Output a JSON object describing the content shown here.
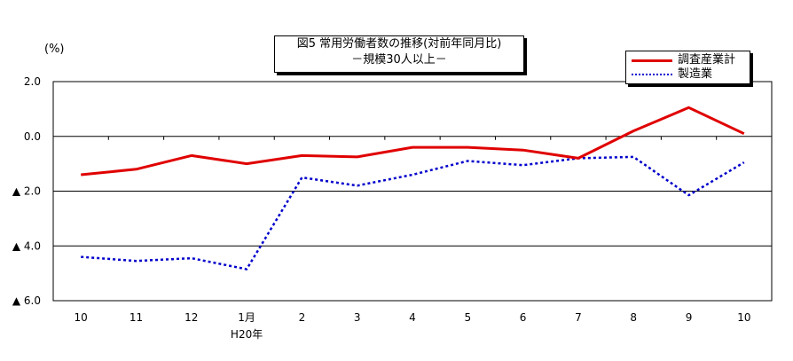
{
  "chart_data": {
    "type": "line",
    "title_lines": [
      "図5  常用労働者数の推移(対前年同月比)",
      "－規模30人以上－"
    ],
    "unit_label": "(%)",
    "categories": [
      "10",
      "11",
      "12",
      "1月",
      "2",
      "3",
      "4",
      "5",
      "6",
      "7",
      "8",
      "9",
      "10"
    ],
    "category_sublabels": [
      "",
      "",
      "",
      "H20年",
      "",
      "",
      "",
      "",
      "",
      "",
      "",
      "",
      ""
    ],
    "y_ticks": [
      {
        "value": 2.0,
        "label": "2.0"
      },
      {
        "value": 0.0,
        "label": "0.0"
      },
      {
        "value": -2.0,
        "label": "▲ 2.0"
      },
      {
        "value": -4.0,
        "label": "▲ 4.0"
      },
      {
        "value": -6.0,
        "label": "▲ 6.0"
      }
    ],
    "ylim": [
      -6.0,
      2.0
    ],
    "grid": "horizontal",
    "legend_position": "top-right",
    "series": [
      {
        "name": "調査産業計",
        "color": "#e00000",
        "style": "solid",
        "values": [
          -1.4,
          -1.2,
          -0.7,
          -1.0,
          -0.7,
          -0.75,
          -0.4,
          -0.4,
          -0.5,
          -0.8,
          0.2,
          1.05,
          0.1
        ]
      },
      {
        "name": "製造業",
        "color": "#0000cc",
        "style": "dotted",
        "values": [
          -4.4,
          -4.55,
          -4.45,
          -4.85,
          -1.5,
          -1.8,
          -1.4,
          -0.9,
          -1.05,
          -0.8,
          -0.75,
          -2.15,
          -0.95
        ]
      }
    ]
  }
}
